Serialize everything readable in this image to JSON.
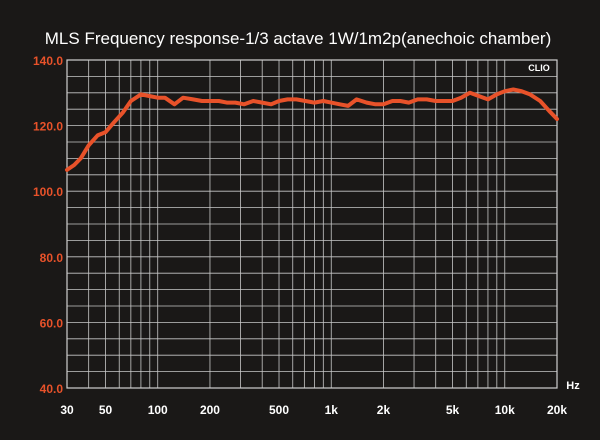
{
  "chart_data": {
    "type": "line",
    "title": "MLS Frequency response-1/3 actave 1W/1m2p(anechoic chamber)",
    "watermark": "CLIO",
    "xlabel": "Hz",
    "ylabel": "",
    "x_scale": "log",
    "xlim": [
      30,
      20000
    ],
    "ylim": [
      40,
      140
    ],
    "grid": true,
    "y_ticks": [
      "140.0",
      "120.0",
      "100.0",
      "80.0",
      "60.0",
      "40.0"
    ],
    "x_ticks": [
      {
        "value": 30,
        "label": "30"
      },
      {
        "value": 50,
        "label": "50"
      },
      {
        "value": 100,
        "label": "100"
      },
      {
        "value": 200,
        "label": "200"
      },
      {
        "value": 500,
        "label": "500"
      },
      {
        "value": 1000,
        "label": "1k"
      },
      {
        "value": 2000,
        "label": "2k"
      },
      {
        "value": 5000,
        "label": "5k"
      },
      {
        "value": 10000,
        "label": "10k"
      },
      {
        "value": 20000,
        "label": "20k"
      }
    ],
    "colors": {
      "background": "#1a1817",
      "grid": "#c8c8c8",
      "series": "#e8522a",
      "tick_labels_y": "#e8522a",
      "tick_labels_x": "#ffffff",
      "title": "#ffffff"
    },
    "series": [
      {
        "x": [
          30,
          33,
          36,
          40,
          45,
          50,
          56,
          63,
          70,
          80,
          90,
          100,
          110,
          125,
          140,
          160,
          180,
          200,
          225,
          250,
          280,
          315,
          355,
          400,
          450,
          500,
          560,
          630,
          710,
          800,
          900,
          1000,
          1120,
          1250,
          1400,
          1600,
          1800,
          2000,
          2250,
          2500,
          2800,
          3150,
          3550,
          4000,
          4500,
          5000,
          5600,
          6300,
          7100,
          8000,
          9000,
          10000,
          11200,
          12500,
          14000,
          16000,
          18000,
          20000
        ],
        "y": [
          106.5,
          108,
          110,
          114,
          117,
          118,
          121,
          124,
          127.5,
          129.5,
          129,
          128.5,
          128.5,
          126.5,
          128.5,
          128,
          127.5,
          127.5,
          127.5,
          127,
          127,
          126.5,
          127.5,
          127,
          126.5,
          127.5,
          128,
          128,
          127.5,
          127,
          127.5,
          127,
          126.5,
          126,
          128,
          127,
          126.5,
          126.5,
          127.5,
          127.5,
          127,
          128,
          128,
          127.5,
          127.5,
          127.5,
          128.5,
          130,
          129,
          128,
          129.5,
          130.5,
          131,
          130.5,
          129.5,
          127.5,
          124.5,
          122
        ]
      }
    ]
  }
}
